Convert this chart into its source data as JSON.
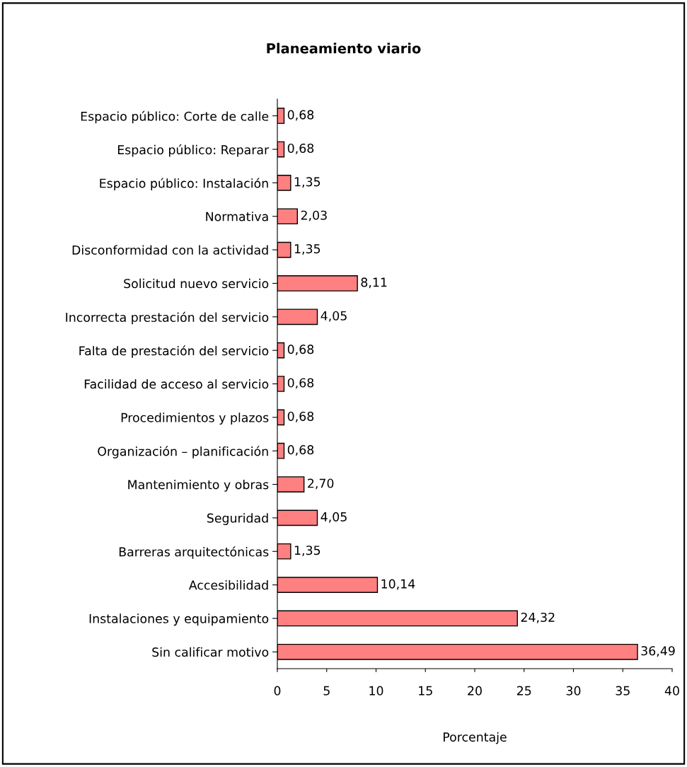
{
  "chart_data": {
    "type": "bar",
    "orientation": "horizontal",
    "title": "Planeamiento viario",
    "xlabel": "Porcentaje",
    "categories": [
      "Espacio público: Corte de calle",
      "Espacio público: Reparar",
      "Espacio público: Instalación",
      "Normativa",
      "Disconformidad con la actividad",
      "Solicitud nuevo servicio",
      "Incorrecta prestación del servicio",
      "Falta de prestación del servicio",
      "Facilidad de acceso al servicio",
      "Procedimientos y plazos",
      "Organización – planificación",
      "Mantenimiento y obras",
      "Seguridad",
      "Barreras arquitectónicas",
      "Accesibilidad",
      "Instalaciones y equipamiento",
      "Sin calificar motivo"
    ],
    "values": [
      0.68,
      0.68,
      1.35,
      2.03,
      1.35,
      8.11,
      4.05,
      0.68,
      0.68,
      0.68,
      0.68,
      2.7,
      4.05,
      1.35,
      10.14,
      24.32,
      36.49
    ],
    "value_labels": [
      "0,68",
      "0,68",
      "1,35",
      "2,03",
      "1,35",
      "8,11",
      "4,05",
      "0,68",
      "0,68",
      "0,68",
      "0,68",
      "2,70",
      "4,05",
      "1,35",
      "10,14",
      "24,32",
      "36,49"
    ],
    "color": "#ff8080",
    "xlim": [
      0,
      40
    ],
    "xticks": [
      0,
      5,
      10,
      15,
      20,
      25,
      30,
      35,
      40
    ],
    "grid": false,
    "legend": false
  }
}
